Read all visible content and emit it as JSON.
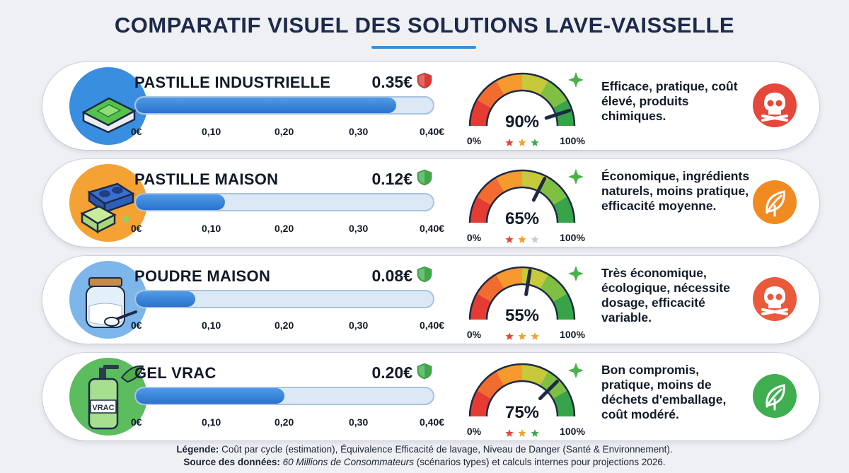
{
  "title": "COMPARATIF VISUEL DES SOLUTIONS LAVE-VAISSELLE",
  "ticks": [
    "0€",
    "0,10",
    "0,20",
    "0,30",
    "0,40€"
  ],
  "gauge_min_label": "0%",
  "gauge_max_label": "100%",
  "chart_data": {
    "type": "bar",
    "cost_axis": {
      "range": [
        0,
        0.4
      ],
      "ticks": [
        "0€",
        "0,10",
        "0,20",
        "0,30",
        "0,40€"
      ]
    },
    "efficiency_axis": {
      "range": [
        0,
        100
      ],
      "min_label": "0%",
      "max_label": "100%"
    },
    "rows": [
      {
        "name": "PASTILLE INDUSTRIELLE",
        "price_label": "0.35€",
        "cost": 0.35,
        "efficiency": 90,
        "efficiency_label": "90%",
        "stars": 3,
        "danger": "high",
        "shield_color": "#d93a33",
        "description": "Efficace, pratique, coût élevé, produits chimiques.",
        "badge_icon": "skull-icon",
        "badge_color": "#e5473a",
        "illustration": "dishwasher-tablet-icon",
        "illu_bg": "#3a8ee0"
      },
      {
        "name": "PASTILLE MAISON",
        "price_label": "0.12€",
        "cost": 0.12,
        "efficiency": 65,
        "efficiency_label": "65%",
        "stars": 2,
        "danger": "low",
        "shield_color": "#3fa94a",
        "description": "Économique, ingrédients naturels, moins pratique, efficacité moyenne.",
        "badge_icon": "leaf-icon",
        "badge_color": "#f28a22",
        "illustration": "mold-tablet-icon",
        "illu_bg": "#f4a233"
      },
      {
        "name": "POUDRE MAISON",
        "price_label": "0.08€",
        "cost": 0.08,
        "efficiency": 55,
        "efficiency_label": "55%",
        "stars": 2.5,
        "danger": "low",
        "shield_color": "#3fa94a",
        "description": "Très économique, écologique, nécessite dosage, efficacité variable.",
        "badge_icon": "skull-icon",
        "badge_color": "#ea5a3a",
        "illustration": "powder-jar-icon",
        "illu_bg": "#7cb6ea"
      },
      {
        "name": "GEL VRAC",
        "price_label": "0.20€",
        "cost": 0.2,
        "efficiency": 75,
        "efficiency_label": "75%",
        "stars": 3,
        "danger": "low",
        "shield_color": "#3fa94a",
        "description": "Bon compromis, pratique, moins de déchets d'emballage, coût modéré.",
        "badge_icon": "leaf-icon",
        "badge_color": "#3fae4f",
        "illustration": "gel-bottle-icon",
        "illu_bg": "#5bbd5e",
        "bottle_label": "VRAC"
      }
    ]
  },
  "footer": {
    "legend_label": "Légende:",
    "legend_text": " Coût par cycle (estimation), Équivalence Efficacité de lavage, Niveau de Danger (Santé & Environnement).",
    "source_label": "Source des données:",
    "source_italic": " 60 Millions de Consommateurs",
    "source_text": " (scénarios types) et calculs internes pour projections 2026."
  }
}
